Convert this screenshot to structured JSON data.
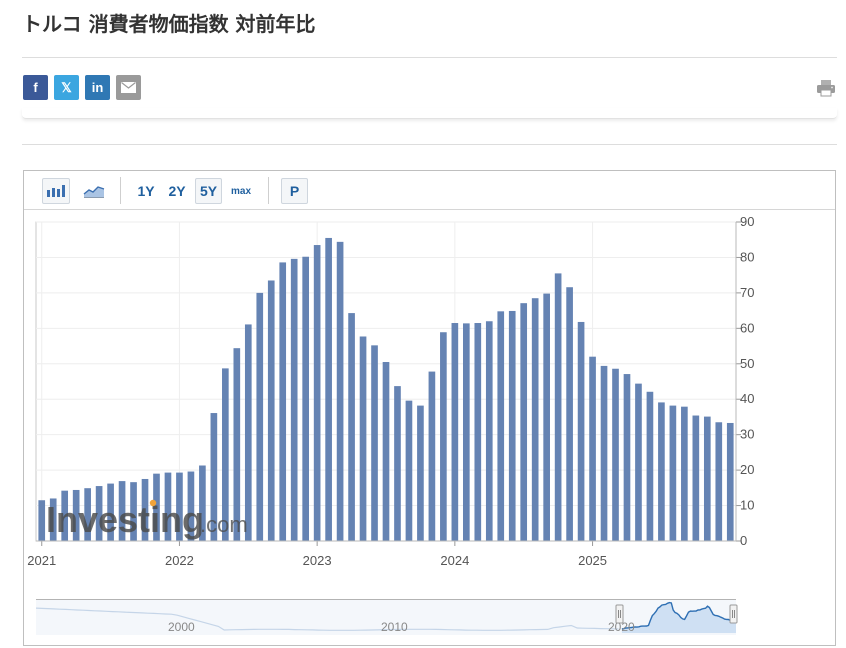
{
  "page": {
    "title": "トルコ 消費者物価指数 対前年比"
  },
  "share": [
    {
      "icon": "facebook-icon",
      "label": "f",
      "color": "#3b5998"
    },
    {
      "icon": "x-twitter-icon",
      "label": "𝕏",
      "color": "#3ba6e0"
    },
    {
      "icon": "linkedin-icon",
      "label": "in",
      "color": "#2f78b4"
    },
    {
      "icon": "email-icon",
      "label": "",
      "color": "#9a9a9a"
    }
  ],
  "toolbar": {
    "range_1y": "1Y",
    "range_2y": "2Y",
    "range_5y": "5Y",
    "range_max": "max",
    "p_button": "P",
    "selected_range": "5Y"
  },
  "watermark": {
    "brand": "Investing",
    "suffix": ".com"
  },
  "navigator": {
    "labels": [
      "2000",
      "2010",
      "2020"
    ]
  },
  "colors": {
    "bar": "#6583b3",
    "toolbar_text": "#1f5f9e",
    "navigator_fill": "#cfe0f3",
    "navigator_line": "#2e6fb3"
  },
  "chart_data": {
    "type": "bar",
    "title": "",
    "xlabel": "",
    "ylabel": "",
    "ylim": [
      0,
      90
    ],
    "yticks": [
      0,
      10,
      20,
      30,
      40,
      50,
      60,
      70,
      80,
      90
    ],
    "xtick_labels": [
      "2021",
      "2022",
      "2023",
      "2024",
      "2025"
    ],
    "grid": true,
    "y_axis_side": "right",
    "series": [
      {
        "values": [
          11.5,
          12.0,
          14.2,
          14.4,
          14.9,
          15.5,
          16.2,
          16.9,
          16.6,
          17.5,
          19.0,
          19.3,
          19.3,
          19.6,
          21.3,
          36.1,
          48.7,
          54.4,
          61.1,
          70.0,
          73.5,
          78.6,
          79.6,
          80.2,
          83.5,
          85.5,
          84.4,
          64.3,
          57.7,
          55.2,
          50.5,
          43.7,
          39.6,
          38.2,
          47.8,
          58.9,
          61.5,
          61.4,
          61.5,
          62.0,
          64.8,
          64.9,
          67.1,
          68.5,
          69.8,
          75.5,
          71.6,
          61.8,
          52.0,
          49.4,
          48.6,
          47.1,
          44.4,
          42.1,
          39.1,
          38.2,
          37.9,
          35.4,
          35.1,
          33.5,
          33.3
        ]
      }
    ]
  }
}
